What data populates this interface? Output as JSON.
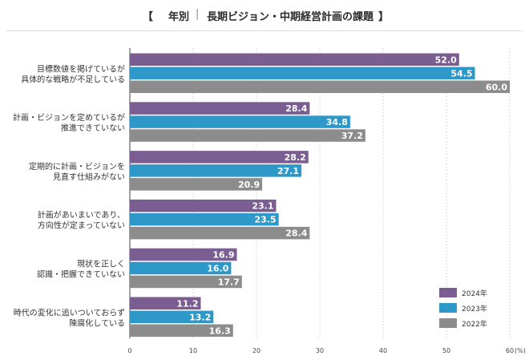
{
  "chart_data": {
    "type": "bar",
    "orientation": "horizontal",
    "title_left_bracket": "【",
    "title_main": "年別",
    "title_separator": "|",
    "title_sub": "長期ビジョン・中期経営計画の課題",
    "title_right_bracket": "】",
    "categories": [
      [
        "目標数値を掲げているが",
        "具体的な戦略が不足している"
      ],
      [
        "計画・ビジョンを定めているが",
        "推進できていない"
      ],
      [
        "定期的に計画・ビジョンを",
        "見直す仕組みがない"
      ],
      [
        "計画があいまいであり、",
        "方向性が定まっていない"
      ],
      [
        "現状を正しく",
        "認識・把握できていない"
      ],
      [
        "時代の変化に追いついておらず",
        "陳腐化している"
      ]
    ],
    "series": [
      {
        "name": "2024年",
        "color": "#7b5e91",
        "values": [
          52.0,
          28.4,
          28.2,
          23.1,
          16.9,
          11.2
        ]
      },
      {
        "name": "2023年",
        "color": "#2e98c8",
        "values": [
          54.5,
          34.8,
          27.1,
          23.5,
          16.0,
          13.2
        ]
      },
      {
        "name": "2022年",
        "color": "#8c8c8c",
        "values": [
          60.0,
          37.2,
          20.9,
          28.4,
          17.7,
          16.3
        ]
      }
    ],
    "xlim": [
      0,
      60
    ],
    "xticks": [
      0,
      10,
      20,
      30,
      40,
      50,
      60
    ],
    "x_unit": "(%)",
    "gridlines": true,
    "legend_position": "bottom-right"
  }
}
